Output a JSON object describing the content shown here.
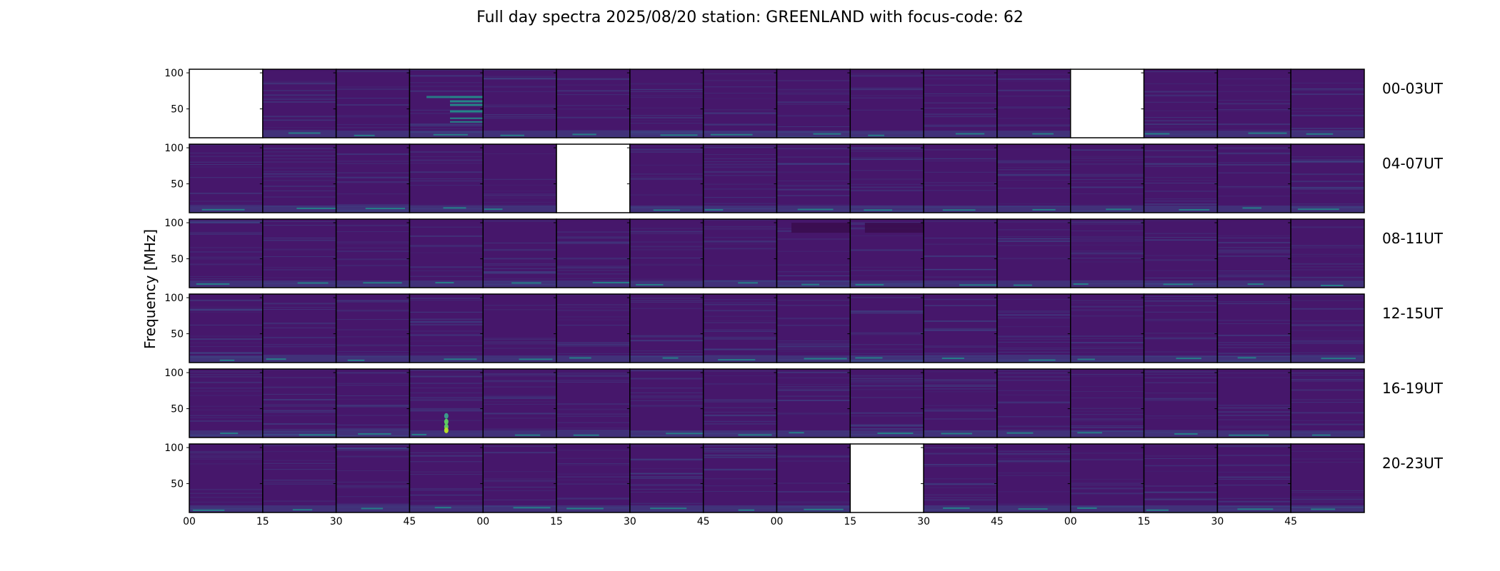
{
  "chart_data": {
    "type": "heatmap",
    "title": "Full day spectra 2025/08/20 station: GREENLAND with focus-code: 62",
    "ylabel": "Frequency [MHz]",
    "xlabel": "",
    "ylim": [
      10,
      105
    ],
    "yticks": [
      "100",
      "50"
    ],
    "ytick_values": [
      100,
      50
    ],
    "xticks": [
      "00",
      "15",
      "30",
      "45",
      "00",
      "15",
      "30",
      "45",
      "00",
      "15",
      "30",
      "45",
      "00",
      "15",
      "30",
      "45"
    ],
    "colormap": "viridis",
    "rows": [
      {
        "label": "00-03UT",
        "missing": [
          0,
          12
        ],
        "features": [
          {
            "col": 3,
            "kind": "bands"
          }
        ]
      },
      {
        "label": "04-07UT",
        "missing": [
          5
        ],
        "features": []
      },
      {
        "label": "08-11UT",
        "missing": [],
        "features": [
          {
            "col": 8,
            "kind": "dark-block"
          },
          {
            "col": 9,
            "kind": "dark-block"
          }
        ]
      },
      {
        "label": "12-15UT",
        "missing": [],
        "features": []
      },
      {
        "label": "16-19UT",
        "missing": [],
        "features": [
          {
            "col": 3,
            "kind": "burst"
          }
        ]
      },
      {
        "label": "20-23UT",
        "missing": [
          9
        ],
        "features": []
      }
    ],
    "grid": false,
    "colors": {
      "bg_low": "#440154",
      "mid": "#3b528b",
      "teal": "#21918c",
      "green": "#5ec962",
      "yellow": "#fde725",
      "frame": "#000000"
    }
  }
}
